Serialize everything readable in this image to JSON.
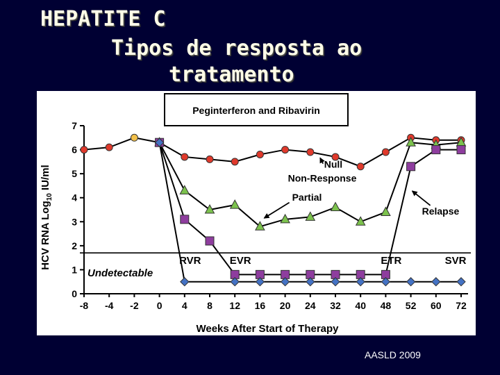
{
  "slide": {
    "title_line1": "HEPATITE C",
    "title_line2": "Tipos de resposta ao",
    "title_line3": "tratamento",
    "source": "AASLD 2009"
  },
  "chart_data": {
    "type": "line",
    "title": "Peginterferon and Ribavirin",
    "xlabel": "Weeks After Start of Therapy",
    "ylabel": "HCV RNA Log10 IU/ml",
    "ylabel_main": "HCV RNA Log",
    "ylabel_sub": "10",
    "ylabel_end": " IU/ml",
    "ylim": [
      0,
      7
    ],
    "yticks": [
      "0",
      "1",
      "2",
      "3",
      "4",
      "5",
      "6",
      "7"
    ],
    "categories": [
      "-8",
      "-4",
      "-2",
      "0",
      "4",
      "8",
      "12",
      "16",
      "20",
      "24",
      "32",
      "40",
      "48",
      "52",
      "60",
      "72"
    ],
    "detection_limit": 1.7,
    "undetectable_label": "Undetectable",
    "milestones": [
      {
        "label": "RVR",
        "category": "4"
      },
      {
        "label": "EVR",
        "category": "12"
      },
      {
        "label": "ETR",
        "category": "48"
      },
      {
        "label": "SVR",
        "category": "72"
      }
    ],
    "series": [
      {
        "name": "Null",
        "marker": "circle",
        "color": "#e03a2c",
        "values": [
          6.0,
          6.1,
          6.5,
          6.3,
          5.7,
          5.6,
          5.5,
          5.8,
          6.0,
          5.9,
          5.7,
          5.3,
          5.9,
          6.5,
          6.4,
          6.4
        ]
      },
      {
        "name": "Partial",
        "marker": "triangle",
        "color": "#7cc24d",
        "values": [
          null,
          null,
          null,
          6.3,
          4.3,
          3.5,
          3.7,
          2.8,
          3.1,
          3.2,
          3.6,
          3.0,
          3.4,
          6.3,
          6.2,
          6.3
        ]
      },
      {
        "name": "Relapse",
        "marker": "square",
        "color": "#8e3d9e",
        "values": [
          null,
          null,
          null,
          6.3,
          3.1,
          2.2,
          0.8,
          0.8,
          0.8,
          0.8,
          0.8,
          0.8,
          0.8,
          5.3,
          6.0,
          6.0
        ]
      },
      {
        "name": "SVR",
        "marker": "diamond",
        "color": "#4472c4",
        "values": [
          null,
          null,
          null,
          6.3,
          0.5,
          null,
          0.5,
          0.5,
          0.5,
          0.5,
          0.5,
          0.5,
          0.5,
          0.5,
          0.5,
          0.5
        ]
      }
    ],
    "annotations": [
      {
        "text": "Null",
        "series": "Null"
      },
      {
        "text": "Non-Response",
        "series": "Null"
      },
      {
        "text": "Partial",
        "series": "Partial"
      },
      {
        "text": "Relapse",
        "series": "Relapse"
      }
    ]
  }
}
